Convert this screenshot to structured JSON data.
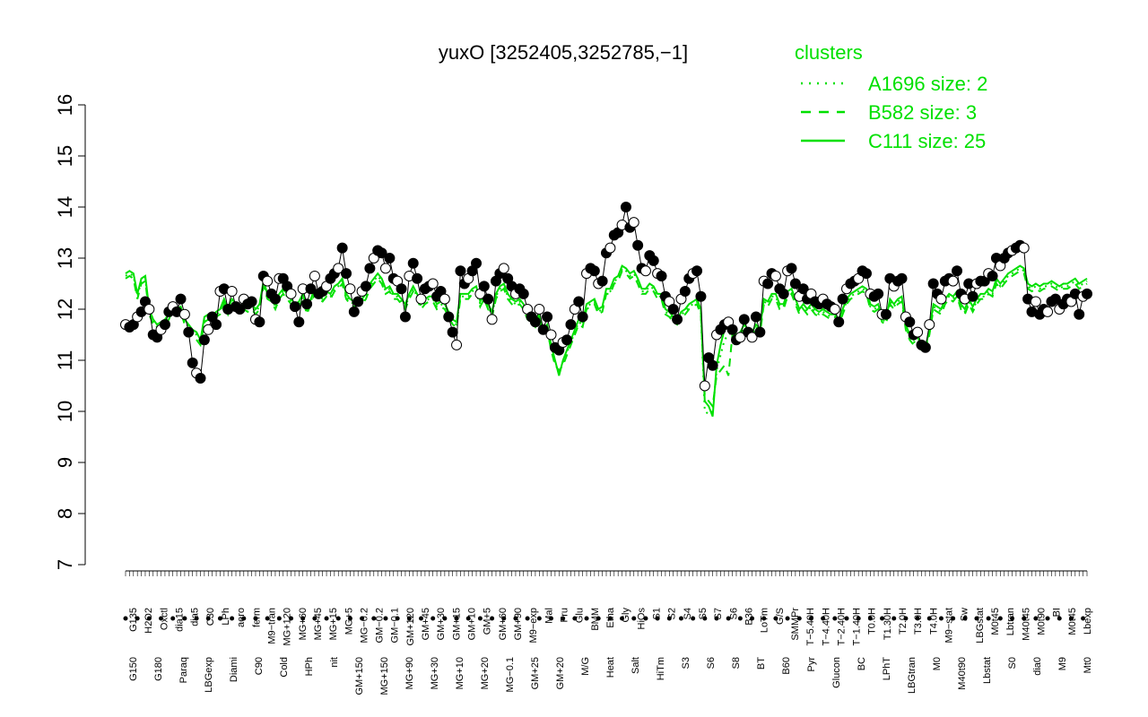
{
  "chart_data": {
    "type": "line",
    "title": "yuxO [3252405,3252785,−1]",
    "xlabel": "",
    "ylabel": "",
    "ylim": [
      7,
      16
    ],
    "yticks": [
      "7",
      "8",
      "9",
      "10",
      "11",
      "12",
      "13",
      "14",
      "15",
      "16"
    ],
    "grid": false,
    "legend": {
      "title": "clusters",
      "position": "top-right",
      "entries": [
        {
          "label": "A1696 size: 2",
          "style": "dotted",
          "color": "#00e000"
        },
        {
          "label": "B582 size: 3",
          "style": "dashed",
          "color": "#00e000"
        },
        {
          "label": "C111 size: 25",
          "style": "solid",
          "color": "#00e000"
        }
      ]
    },
    "x_labels_top": [
      "G135",
      "H2O2",
      "Oxctl",
      "dia15",
      "dia5",
      "C30",
      "LPh",
      "aero",
      "ferm",
      "M9−tran",
      "MG+120",
      "MG+60",
      "MG+45",
      "MG+15",
      "MG+5",
      "MG−0.2",
      "GM−0.2",
      "GM−0.1",
      "GM+120",
      "GM+45",
      "GM+30",
      "GM+15",
      "GM+10",
      "GM+5",
      "GM+60",
      "GM+90",
      "M9−exp",
      "Mal",
      "Fru",
      "Glu",
      "BMM",
      "Etha",
      "Gly",
      "HiOs",
      "S1",
      "S2",
      "S4",
      "S5",
      "S7",
      "S6",
      "B36",
      "LoTm",
      "G/S",
      "SMMPr",
      "T−5.40H",
      "T−4.40H",
      "T−2.40H",
      "T−1.40H",
      "T0.0H",
      "T1.30H",
      "T2.0H",
      "T3.0H",
      "T4.0H",
      "M9−stat",
      "Sw",
      "LBGstat",
      "M0t45",
      "Lbtran",
      "M40t45",
      "M0t90",
      "BI",
      "M0t45",
      "Lbexp"
    ],
    "x_labels_bottom": [
      "G150",
      "G180",
      "Paraq",
      "LBGexp",
      "Diami",
      "C90",
      "Cold",
      "HPh",
      "nit",
      "GM+150",
      "MG+150",
      "MG+90",
      "MG+30",
      "MG+10",
      "MG+20",
      "MG−0.1",
      "GM+25",
      "GM+20",
      "M/G",
      "Heat",
      "Salt",
      "HiTm",
      "S3",
      "S6",
      "S8",
      "BT",
      "B60",
      "Pyr",
      "Glucon",
      "BC",
      "LPhT",
      "LBGtran",
      "M0",
      "M40t90",
      "Lbstat",
      "S0",
      "dia0",
      "M9",
      "Mt0"
    ],
    "series": [
      {
        "label": "expression points",
        "color": "#000000",
        "values": [
          11.7,
          11.65,
          11.7,
          11.85,
          11.95,
          12.15,
          12.0,
          11.5,
          11.45,
          11.6,
          11.7,
          11.95,
          12.05,
          11.95,
          12.2,
          11.9,
          11.55,
          10.95,
          10.75,
          10.65,
          11.4,
          11.6,
          11.85,
          11.7,
          12.35,
          12.4,
          12.0,
          12.35,
          12.05,
          12.0,
          12.2,
          12.1,
          12.15,
          11.8,
          11.75,
          12.65,
          12.55,
          12.3,
          12.2,
          12.6,
          12.6,
          12.45,
          12.3,
          12.05,
          11.75,
          12.4,
          12.1,
          12.4,
          12.65,
          12.3,
          12.35,
          12.45,
          12.6,
          12.7,
          12.8,
          13.2,
          12.7,
          12.4,
          11.95,
          12.15,
          12.35,
          12.45,
          12.8,
          13.0,
          13.15,
          13.1,
          12.8,
          13.0,
          12.6,
          12.55,
          12.4,
          11.85,
          12.65,
          12.9,
          12.6,
          12.2,
          12.4,
          12.45,
          12.5,
          12.25,
          12.35,
          12.2,
          11.85,
          11.55,
          11.3,
          12.75,
          12.5,
          12.6,
          12.75,
          12.9,
          12.3,
          12.45,
          12.2,
          11.8,
          12.55,
          12.7,
          12.8,
          12.6,
          12.45,
          12.3,
          12.4,
          12.3,
          12.0,
          11.85,
          11.75,
          12.0,
          11.6,
          11.85,
          11.5,
          11.25,
          11.2,
          11.35,
          11.4,
          11.7,
          12.0,
          12.15,
          11.85,
          12.7,
          12.8,
          12.75,
          12.5,
          12.55,
          13.1,
          13.2,
          13.45,
          13.5,
          13.65,
          14.0,
          13.6,
          13.7,
          13.25,
          12.8,
          12.75,
          13.05,
          12.95,
          12.7,
          12.65,
          12.25,
          12.15,
          12.0,
          11.8,
          12.2,
          12.35,
          12.6,
          12.7,
          12.75,
          12.25,
          10.5,
          11.05,
          10.9,
          11.5,
          11.6,
          11.7,
          11.75,
          11.6,
          11.4,
          11.45,
          11.8,
          11.55,
          11.45,
          11.85,
          11.55,
          12.55,
          12.5,
          12.7,
          12.65,
          12.4,
          12.3,
          12.75,
          12.8,
          12.5,
          12.25,
          12.4,
          12.2,
          12.3,
          12.15,
          12.1,
          12.2,
          12.1,
          12.05,
          12.0,
          11.75,
          12.2,
          12.4,
          12.5,
          12.55,
          12.6,
          12.75,
          12.7,
          12.3,
          12.25,
          12.3,
          11.9,
          11.9,
          12.6,
          12.45,
          12.55,
          12.6,
          11.85,
          11.75,
          11.5,
          11.55,
          11.3,
          11.25,
          11.7,
          12.5,
          12.3,
          12.2,
          12.55,
          12.6,
          12.55,
          12.75,
          12.3,
          12.2,
          12.5,
          12.25,
          12.5,
          12.55,
          12.55,
          12.7,
          12.65,
          13.0,
          12.85,
          13.0,
          13.1,
          13.15,
          13.2,
          13.25,
          13.2,
          12.2,
          11.95,
          12.15,
          11.9,
          12.0,
          11.95,
          12.15,
          12.2,
          12.0,
          12.1,
          12.2,
          12.15,
          12.3,
          11.9,
          12.25,
          12.3
        ]
      },
      {
        "name": "C111 size: 25",
        "style": "solid",
        "color": "#00e000",
        "values": [
          12.7,
          12.75,
          12.7,
          12.3,
          12.6,
          12.65,
          12.0,
          11.8,
          11.7,
          11.75,
          11.8,
          11.9,
          12.1,
          12.0,
          12.05,
          11.8,
          11.7,
          11.6,
          11.55,
          11.4,
          11.85,
          11.9,
          11.85,
          11.95,
          12.0,
          12.2,
          12.0,
          12.2,
          12.1,
          12.0,
          12.1,
          12.05,
          12.1,
          12.0,
          12.1,
          12.55,
          12.3,
          12.25,
          12.1,
          12.3,
          12.4,
          12.3,
          12.2,
          12.1,
          12.15,
          12.3,
          12.0,
          12.2,
          12.4,
          12.3,
          12.25,
          12.35,
          12.3,
          12.45,
          12.5,
          12.6,
          12.3,
          12.2,
          12.15,
          12.2,
          12.2,
          12.3,
          12.5,
          12.6,
          12.7,
          12.6,
          12.4,
          12.45,
          12.3,
          12.3,
          12.2,
          12.1,
          12.3,
          12.45,
          12.3,
          12.1,
          12.2,
          12.25,
          12.25,
          12.1,
          12.15,
          12.1,
          11.95,
          11.8,
          11.75,
          12.3,
          12.3,
          12.3,
          12.4,
          12.45,
          12.15,
          12.3,
          12.1,
          11.95,
          12.3,
          12.45,
          12.5,
          12.3,
          12.2,
          12.15,
          12.2,
          12.1,
          11.9,
          11.85,
          11.75,
          11.9,
          11.6,
          11.7,
          11.3,
          11.0,
          10.7,
          11.0,
          11.2,
          11.4,
          11.6,
          11.8,
          11.75,
          12.1,
          12.15,
          12.2,
          12.0,
          12.05,
          12.4,
          12.4,
          12.6,
          12.65,
          12.85,
          12.8,
          12.7,
          12.75,
          12.6,
          12.4,
          12.4,
          12.5,
          12.45,
          12.3,
          12.3,
          12.0,
          11.95,
          11.85,
          11.8,
          11.95,
          12.0,
          12.1,
          12.15,
          12.2,
          12.0,
          10.2,
          10.1,
          9.9,
          10.9,
          11.3,
          11.6,
          11.65,
          11.6,
          11.5,
          11.55,
          11.7,
          11.6,
          11.55,
          11.7,
          11.6,
          12.2,
          12.15,
          12.3,
          12.3,
          12.1,
          12.1,
          12.35,
          12.4,
          12.2,
          12.0,
          12.1,
          12.0,
          12.1,
          12.0,
          11.95,
          12.0,
          11.95,
          11.9,
          11.9,
          11.8,
          12.0,
          12.2,
          12.3,
          12.35,
          12.4,
          12.45,
          12.4,
          12.1,
          12.05,
          12.1,
          11.85,
          11.8,
          12.2,
          12.1,
          12.2,
          12.25,
          11.7,
          11.5,
          11.4,
          11.45,
          11.3,
          11.25,
          11.6,
          12.1,
          12.05,
          12.0,
          12.2,
          12.3,
          12.25,
          12.35,
          12.1,
          12.0,
          12.2,
          12.05,
          12.2,
          12.3,
          12.3,
          12.4,
          12.35,
          12.6,
          12.5,
          12.6,
          12.7,
          12.75,
          12.8,
          12.85,
          12.8,
          12.5,
          12.45,
          12.5,
          12.45,
          12.5,
          12.5,
          12.55,
          12.5,
          12.45,
          12.5,
          12.5,
          12.55,
          12.6,
          12.5,
          12.55,
          12.6
        ]
      },
      {
        "name": "B582 size: 3",
        "style": "dashed",
        "color": "#00e000",
        "values": [
          12.6,
          12.65,
          12.6,
          12.2,
          12.5,
          12.55,
          11.9,
          11.7,
          11.6,
          11.65,
          11.7,
          11.8,
          12.0,
          11.9,
          11.95,
          11.7,
          11.6,
          11.5,
          11.4,
          11.3,
          11.75,
          11.8,
          11.75,
          11.85,
          11.9,
          12.1,
          11.9,
          12.1,
          12.0,
          11.9,
          12.0,
          11.95,
          12.0,
          11.9,
          12.0,
          12.45,
          12.2,
          12.15,
          12.0,
          12.2,
          12.3,
          12.2,
          12.1,
          12.0,
          12.05,
          12.2,
          11.9,
          12.1,
          12.3,
          12.2,
          12.15,
          12.25,
          12.2,
          12.35,
          12.4,
          12.5,
          12.2,
          12.1,
          12.05,
          12.1,
          12.1,
          12.2,
          12.4,
          12.5,
          12.6,
          12.5,
          12.3,
          12.35,
          12.2,
          12.2,
          12.1,
          12.0,
          12.2,
          12.35,
          12.2,
          12.0,
          12.1,
          12.15,
          12.15,
          12.0,
          12.05,
          12.0,
          11.85,
          11.7,
          11.65,
          12.2,
          12.2,
          12.2,
          12.3,
          12.35,
          12.05,
          12.2,
          12.0,
          11.85,
          12.2,
          12.35,
          12.4,
          12.2,
          12.1,
          12.05,
          12.1,
          12.0,
          11.8,
          11.75,
          11.65,
          11.8,
          11.5,
          11.6,
          11.2,
          10.9,
          10.8,
          10.9,
          11.1,
          11.3,
          11.5,
          11.7,
          11.65,
          12.0,
          12.05,
          12.1,
          11.9,
          11.95,
          12.3,
          12.3,
          12.5,
          12.55,
          12.75,
          12.7,
          12.6,
          12.65,
          12.5,
          12.3,
          12.3,
          12.4,
          12.35,
          12.2,
          12.2,
          11.9,
          11.85,
          11.75,
          11.7,
          11.85,
          11.9,
          12.0,
          12.05,
          12.1,
          11.9,
          10.3,
          10.2,
          10.1,
          10.7,
          10.8,
          10.9,
          10.7,
          11.5,
          11.4,
          11.45,
          11.6,
          11.5,
          11.45,
          11.6,
          11.5,
          12.1,
          12.05,
          12.2,
          12.2,
          12.0,
          12.0,
          12.25,
          12.3,
          12.1,
          11.9,
          12.0,
          11.9,
          12.0,
          11.9,
          11.85,
          11.9,
          11.85,
          11.8,
          11.8,
          11.7,
          11.9,
          12.1,
          12.2,
          12.25,
          12.3,
          12.35,
          12.3,
          12.0,
          11.95,
          12.0,
          11.75,
          11.7,
          12.1,
          12.0,
          12.1,
          12.15,
          11.6,
          11.4,
          11.3,
          11.35,
          11.2,
          11.15,
          11.5,
          12.0,
          11.95,
          11.9,
          12.1,
          12.2,
          12.15,
          12.25,
          12.0,
          11.9,
          12.1,
          11.95,
          12.1,
          12.2,
          12.2,
          12.3,
          12.25,
          12.5,
          12.4,
          12.5,
          12.6,
          12.65,
          12.7,
          12.75,
          12.7,
          12.4,
          12.35,
          12.4,
          12.35,
          12.4,
          12.4,
          12.45,
          12.4,
          12.35,
          12.4,
          12.4,
          12.45,
          12.5,
          12.4,
          12.45,
          12.5
        ]
      },
      {
        "name": "A1696 size: 2",
        "style": "dotted",
        "color": "#00e000",
        "values": [
          12.65,
          12.7,
          12.65,
          12.25,
          12.55,
          12.6,
          11.95,
          11.75,
          11.65,
          11.7,
          11.75,
          11.85,
          12.05,
          11.95,
          12.0,
          11.75,
          11.65,
          11.55,
          11.5,
          11.35,
          11.8,
          11.85,
          11.8,
          11.9,
          11.95,
          12.15,
          11.95,
          12.15,
          12.05,
          11.95,
          12.05,
          12.0,
          12.05,
          11.95,
          12.05,
          12.5,
          12.25,
          12.2,
          12.05,
          12.25,
          12.35,
          12.25,
          12.15,
          12.05,
          12.1,
          12.25,
          11.95,
          12.15,
          12.35,
          12.25,
          12.2,
          12.3,
          12.25,
          12.4,
          12.45,
          12.55,
          12.25,
          12.15,
          12.1,
          12.15,
          12.15,
          12.25,
          12.45,
          12.55,
          12.65,
          12.55,
          12.35,
          12.4,
          12.25,
          12.25,
          12.15,
          12.05,
          12.25,
          12.4,
          12.25,
          12.05,
          12.15,
          12.2,
          12.2,
          12.05,
          12.1,
          12.05,
          11.9,
          11.75,
          11.7,
          12.25,
          12.25,
          12.25,
          12.35,
          12.4,
          12.1,
          12.25,
          12.05,
          11.9,
          12.25,
          12.4,
          12.45,
          12.25,
          12.15,
          12.1,
          12.15,
          12.05,
          11.85,
          11.8,
          11.7,
          11.85,
          11.55,
          11.65,
          11.25,
          10.95,
          10.75,
          10.95,
          11.15,
          11.35,
          11.55,
          11.75,
          11.7,
          12.05,
          12.1,
          12.15,
          11.95,
          12.0,
          12.35,
          12.35,
          12.55,
          12.6,
          12.8,
          12.75,
          12.65,
          12.7,
          12.55,
          12.35,
          12.35,
          12.45,
          12.4,
          12.25,
          12.25,
          11.95,
          11.9,
          11.8,
          11.75,
          11.9,
          11.95,
          12.05,
          12.1,
          12.15,
          11.95,
          10.0,
          9.95,
          10.0,
          10.8,
          11.1,
          11.4,
          11.5,
          11.55,
          11.45,
          11.5,
          11.65,
          11.55,
          11.5,
          11.65,
          11.55,
          12.15,
          12.1,
          12.25,
          12.25,
          12.05,
          12.05,
          12.3,
          12.35,
          12.15,
          11.95,
          12.05,
          11.95,
          12.05,
          11.95,
          11.9,
          11.95,
          11.9,
          11.85,
          11.85,
          11.75,
          11.95,
          12.15,
          12.25,
          12.3,
          12.35,
          12.4,
          12.35,
          12.05,
          12.0,
          12.05,
          11.8,
          11.75,
          12.15,
          12.05,
          12.15,
          12.2,
          11.65,
          11.45,
          11.35,
          11.4,
          11.25,
          11.2,
          11.55,
          12.05,
          12.0,
          11.95,
          12.15,
          12.25,
          12.2,
          12.3,
          12.05,
          11.95,
          12.15,
          12.0,
          12.15,
          12.25,
          12.25,
          12.35,
          12.3,
          12.55,
          12.45,
          12.55,
          12.65,
          12.7,
          12.75,
          12.8,
          12.75,
          12.45,
          12.4,
          12.45,
          12.4,
          12.45,
          12.45,
          12.5,
          12.45,
          12.4,
          12.45,
          12.45,
          12.5,
          12.55,
          12.45,
          12.5,
          12.55
        ]
      }
    ]
  }
}
